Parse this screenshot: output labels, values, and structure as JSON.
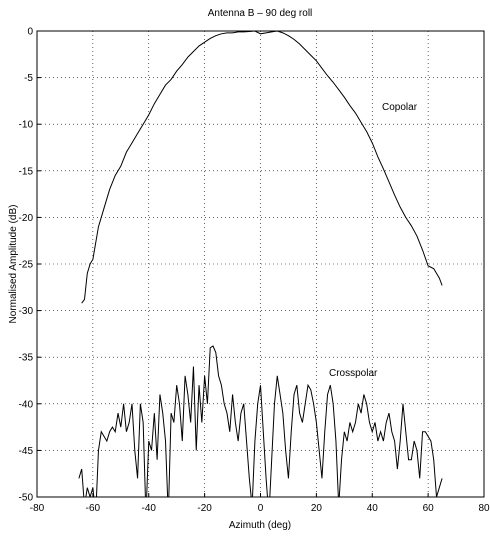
{
  "chart_data": {
    "type": "line",
    "title": "Antenna B – 90 deg roll",
    "x_label": "Azimuth (deg)",
    "y_label": "Normalised Amplitude (dB)",
    "xlim": [
      -80,
      80
    ],
    "ylim": [
      -50,
      0
    ],
    "xticks": [
      -80,
      -60,
      -40,
      -20,
      0,
      20,
      40,
      60,
      80
    ],
    "yticks": [
      0,
      -5,
      -10,
      -15,
      -20,
      -25,
      -30,
      -35,
      -40,
      -45,
      -50
    ],
    "grid": true,
    "series": [
      {
        "name": "Copolar",
        "color": "#000000",
        "x": [
          -64,
          -63,
          -62,
          -61,
          -60,
          -58,
          -56,
          -54,
          -52,
          -50,
          -48,
          -46,
          -44,
          -42,
          -40,
          -38,
          -36,
          -34,
          -32,
          -30,
          -28,
          -26,
          -24,
          -22,
          -20,
          -18,
          -16,
          -14,
          -12,
          -10,
          -8,
          -6,
          -4,
          -2,
          0,
          2,
          4,
          6,
          8,
          10,
          12,
          14,
          16,
          18,
          20,
          22,
          24,
          26,
          28,
          30,
          32,
          34,
          36,
          38,
          40,
          42,
          44,
          46,
          48,
          50,
          52,
          54,
          56,
          58,
          60,
          62,
          64,
          65
        ],
        "values": [
          -29.2,
          -28.8,
          -26,
          -25,
          -24.5,
          -21,
          -19,
          -17,
          -15.5,
          -14.5,
          -13,
          -12,
          -11,
          -10,
          -9,
          -7.8,
          -6.8,
          -5.8,
          -5.2,
          -4.3,
          -3.6,
          -2.8,
          -2.2,
          -1.6,
          -1.2,
          -0.8,
          -0.5,
          -0.3,
          -0.2,
          -0.2,
          -0.1,
          -0.1,
          -0.05,
          0,
          -0.3,
          -0.2,
          -0.1,
          0,
          -0.2,
          -0.5,
          -0.9,
          -1.4,
          -2,
          -2.6,
          -3.2,
          -4,
          -4.8,
          -5.5,
          -6.3,
          -7.1,
          -8,
          -8.8,
          -9.8,
          -10.8,
          -12,
          -13.5,
          -14.8,
          -16.2,
          -17.6,
          -18.9,
          -20,
          -20.9,
          -22,
          -23.5,
          -25.2,
          -25.5,
          -26.5,
          -27.3
        ]
      },
      {
        "name": "Crosspolar",
        "color": "#000000",
        "x": [
          -65,
          -64,
          -63,
          -62,
          -61,
          -60,
          -59,
          -58,
          -57,
          -56,
          -55,
          -54,
          -53,
          -52,
          -51,
          -50,
          -49,
          -48,
          -47,
          -46,
          -45,
          -44,
          -43,
          -42,
          -41,
          -40,
          -39,
          -38,
          -37,
          -36,
          -35,
          -34,
          -33,
          -32,
          -31,
          -30,
          -29,
          -28,
          -27,
          -26,
          -25,
          -24,
          -23,
          -22,
          -21,
          -20,
          -19,
          -18,
          -17,
          -16,
          -15,
          -14,
          -13,
          -12,
          -11,
          -10,
          -9,
          -8,
          -7,
          -6,
          -5,
          -4,
          -3,
          -2,
          -1,
          0,
          1,
          2,
          3,
          4,
          5,
          6,
          7,
          8,
          9,
          10,
          11,
          12,
          13,
          14,
          15,
          16,
          17,
          18,
          19,
          20,
          21,
          22,
          23,
          24,
          25,
          26,
          27,
          28,
          29,
          30,
          31,
          32,
          33,
          34,
          35,
          36,
          37,
          38,
          39,
          40,
          41,
          42,
          43,
          44,
          45,
          46,
          47,
          48,
          49,
          50,
          51,
          52,
          53,
          54,
          55,
          56,
          57,
          58,
          59,
          60,
          61,
          62,
          63,
          64,
          65
        ],
        "values": [
          -48,
          -47,
          -51,
          -49,
          -50,
          -49,
          -52,
          -45,
          -43,
          -43.5,
          -44,
          -43,
          -42.5,
          -43,
          -41,
          -42.5,
          -40,
          -43,
          -42,
          -40,
          -45,
          -48,
          -40,
          -42,
          -52,
          -44,
          -45,
          -41,
          -46,
          -39,
          -41,
          -44,
          -52,
          -41,
          -42,
          -38,
          -40,
          -44,
          -37,
          -39,
          -42,
          -36,
          -45,
          -38,
          -42,
          -37,
          -40,
          -34,
          -33.8,
          -34.5,
          -37,
          -38,
          -40,
          -41,
          -43,
          -39,
          -42,
          -44,
          -41,
          -40,
          -44,
          -48,
          -51,
          -44,
          -40,
          -38,
          -43,
          -48,
          -52,
          -46,
          -40,
          -37,
          -39,
          -41,
          -45,
          -48,
          -43,
          -39,
          -38,
          -41,
          -42,
          -40,
          -38,
          -38.5,
          -40,
          -42,
          -45,
          -48,
          -43,
          -39,
          -38,
          -40,
          -44,
          -51,
          -46,
          -43,
          -44,
          -42,
          -43,
          -42,
          -40,
          -41,
          -39,
          -40,
          -42,
          -43,
          -42,
          -44,
          -43,
          -44,
          -42,
          -41,
          -43,
          -44,
          -47,
          -44,
          -40,
          -43,
          -46,
          -46,
          -44,
          -45,
          -48,
          -43,
          -43,
          -43.5,
          -44,
          -46,
          -50,
          -49,
          -48
        ]
      }
    ]
  }
}
